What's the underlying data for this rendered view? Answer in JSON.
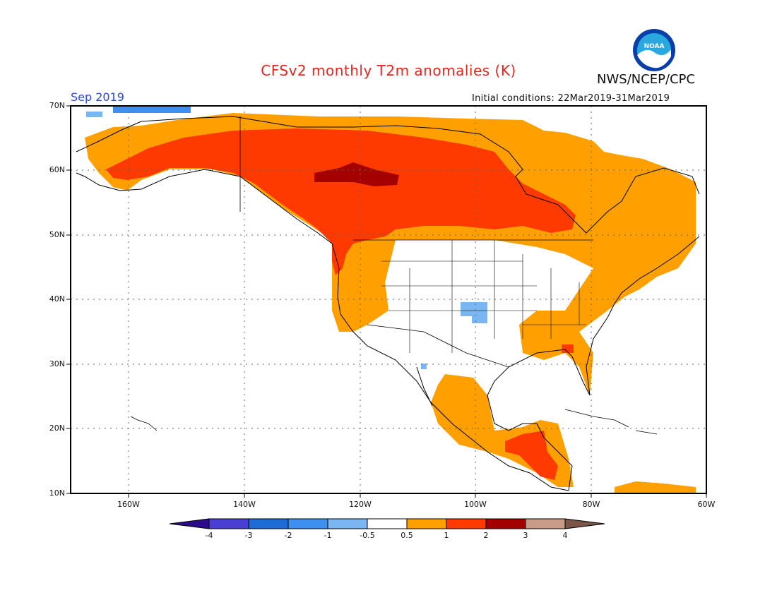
{
  "title": "CFSv2 monthly T2m anomalies (K)",
  "agency": "NWS/NCEP/CPC",
  "logo_text": "NOAA",
  "valid_month": "Sep 2019",
  "initial_conditions": "Initial conditions: 22Mar2019-31Mar2019",
  "map": {
    "lat_labels": [
      "70N",
      "60N",
      "50N",
      "40N",
      "30N",
      "20N",
      "10N"
    ],
    "lon_labels": [
      "160W",
      "140W",
      "120W",
      "100W",
      "80W",
      "60W"
    ],
    "lon_range": [
      -170,
      -60
    ],
    "lat_range": [
      10,
      70
    ]
  },
  "colorbar": {
    "labels": [
      "-4",
      "-3",
      "-2",
      "-1",
      "-0.5",
      "0.5",
      "1",
      "2",
      "3",
      "4"
    ],
    "colors": [
      "#2b0b8a",
      "#4a3fd4",
      "#1e6bd6",
      "#3f8ff0",
      "#7ab6f2",
      "#ffffff",
      "#ffa000",
      "#ff3a00",
      "#a50000",
      "#c89b88",
      "#7a5548"
    ]
  },
  "colors": {
    "warm_light": "#ffa000",
    "warm_mid": "#ff3a00",
    "warm_dark": "#a50000",
    "cool_light": "#7ab6f2",
    "cool_mid": "#3f8ff0"
  }
}
